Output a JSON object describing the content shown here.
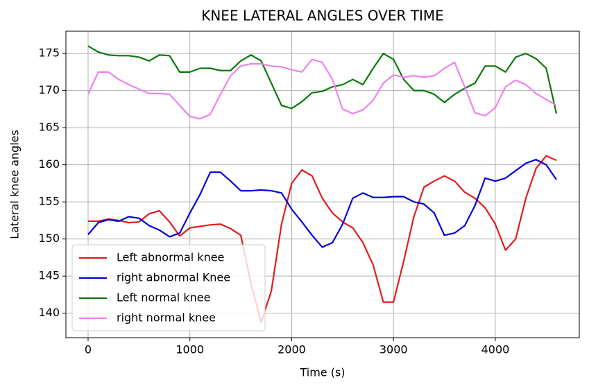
{
  "chart_data": {
    "type": "line",
    "title": "KNEE LATERAL ANGLES OVER TIME",
    "xlabel": "Time (s)",
    "ylabel": "Lateral knee angles",
    "x": [
      0,
      100,
      200,
      300,
      400,
      500,
      600,
      700,
      800,
      900,
      1000,
      1100,
      1200,
      1300,
      1400,
      1500,
      1600,
      1700,
      1800,
      1900,
      2000,
      2100,
      2200,
      2300,
      2400,
      2500,
      2600,
      2700,
      2800,
      2900,
      3000,
      3100,
      3200,
      3300,
      3400,
      3500,
      3600,
      3700,
      3800,
      3900,
      4000,
      4100,
      4200,
      4300,
      4400,
      4500,
      4600
    ],
    "series": [
      {
        "name": "Left abnormal knee",
        "color": "#e31a1c",
        "values": [
          152.4,
          152.4,
          152.7,
          152.5,
          152.2,
          152.3,
          153.4,
          153.8,
          152.3,
          150.4,
          151.5,
          151.7,
          151.9,
          152.0,
          151.4,
          150.5,
          144,
          138.8,
          143,
          152,
          157.5,
          159.3,
          158.5,
          155.5,
          153.5,
          152.3,
          151.5,
          149.5,
          146.5,
          141.5,
          141.5,
          147,
          153,
          157,
          157.8,
          158.5,
          157.8,
          156.3,
          155.5,
          154.2,
          152,
          148.5,
          150,
          155.5,
          159.5,
          161.2,
          160.6
        ]
      },
      {
        "name": "right abnormal Knee",
        "color": "#0000dd",
        "values": [
          150.6,
          152.2,
          152.6,
          152.4,
          153,
          152.8,
          151.8,
          151.2,
          150.3,
          150.8,
          153.5,
          156,
          159,
          159,
          157.8,
          156.5,
          156.5,
          156.6,
          156.5,
          156.2,
          154,
          152.3,
          150.5,
          148.9,
          149.5,
          152,
          155.5,
          156.2,
          155.6,
          155.6,
          155.7,
          155.7,
          155,
          154.7,
          153.5,
          150.5,
          150.8,
          151.8,
          154.5,
          158.2,
          157.8,
          158.2,
          159.2,
          160.2,
          160.7,
          160,
          158
        ]
      },
      {
        "name": "Left normal knee",
        "color": "#087808",
        "values": [
          176,
          175.2,
          174.8,
          174.7,
          174.7,
          174.5,
          174,
          174.8,
          174.7,
          172.5,
          172.5,
          173,
          173,
          172.7,
          172.7,
          174,
          174.8,
          174,
          171,
          168,
          167.6,
          168.5,
          169.7,
          169.9,
          170.5,
          170.8,
          171.5,
          170.8,
          173,
          175,
          174.2,
          171.5,
          170,
          170,
          169.5,
          168.4,
          169.5,
          170.3,
          171,
          173.3,
          173.3,
          172.5,
          174.5,
          175,
          174.3,
          173,
          166.9
        ]
      },
      {
        "name": "right normal knee",
        "color": "#ee82ee",
        "values": [
          169.5,
          172.5,
          172.5,
          171.5,
          170.8,
          170.2,
          169.6,
          169.6,
          169.5,
          168,
          166.5,
          166.2,
          166.8,
          169.5,
          172,
          173.3,
          173.6,
          173.6,
          173.3,
          173.2,
          172.8,
          172.5,
          174.2,
          173.8,
          171.5,
          167.5,
          166.9,
          167.4,
          168.7,
          171,
          172.1,
          171.8,
          172,
          171.8,
          172,
          173,
          173.8,
          170.5,
          167,
          166.6,
          167.7,
          170.5,
          171.4,
          170.8,
          169.6,
          168.8,
          168
        ]
      }
    ],
    "xlim": [
      -218,
      4825
    ],
    "ylim": [
      136.7,
      178.0
    ],
    "xticks": [
      0,
      1000,
      2000,
      3000,
      4000
    ],
    "yticks": [
      140,
      145,
      150,
      155,
      160,
      165,
      170,
      175
    ],
    "grid": true,
    "legend": "lower left"
  }
}
